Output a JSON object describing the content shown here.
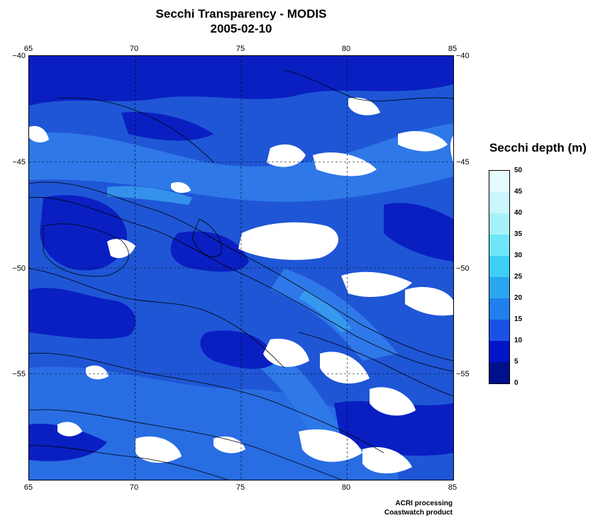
{
  "title": "Secchi Transparency - MODIS",
  "subtitle": "2005-02-10",
  "map": {
    "lon_ticks": [
      "65",
      "70",
      "75",
      "80",
      "85"
    ],
    "lat_ticks": [
      "−40",
      "−45",
      "−50",
      "−55"
    ],
    "lon_range": [
      65,
      85
    ],
    "lat_range": [
      -60,
      -40
    ],
    "grid": "dashed",
    "cloud_color": "#ffffff",
    "contour_color": "#000000"
  },
  "legend": {
    "title": "Secchi depth (m)",
    "labels": [
      "50",
      "45",
      "40",
      "35",
      "30",
      "25",
      "20",
      "15",
      "10",
      "5",
      "0"
    ],
    "colors": [
      "#000f8a",
      "#0014c8",
      "#1a52e6",
      "#1f80ec",
      "#2aa6f0",
      "#3ecef6",
      "#6ee6f8",
      "#a8f0fa",
      "#ccf6fb",
      "#e6fbfd"
    ]
  },
  "credits": {
    "line1": "ACRI processing",
    "line2": "Coastwatch product"
  }
}
